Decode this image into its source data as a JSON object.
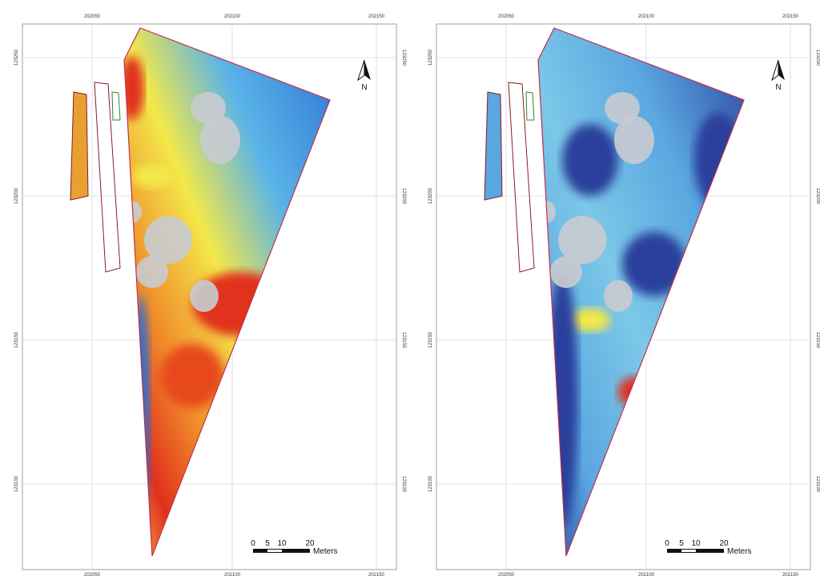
{
  "panels": [
    {
      "x_labels": [
        "202050",
        "202100",
        "202150"
      ],
      "y_labels": [
        "123250",
        "123200",
        "123150",
        "123100"
      ],
      "north": "N",
      "scale_ticks": [
        "0",
        "5",
        "10",
        "20"
      ],
      "scale_unit": "Meters"
    },
    {
      "x_labels": [
        "202050",
        "202100",
        "202150"
      ],
      "y_labels": [
        "123250",
        "123200",
        "123150",
        "123100"
      ],
      "north": "N",
      "scale_ticks": [
        "0",
        "5",
        "10",
        "20"
      ],
      "scale_unit": "Meters"
    }
  ]
}
